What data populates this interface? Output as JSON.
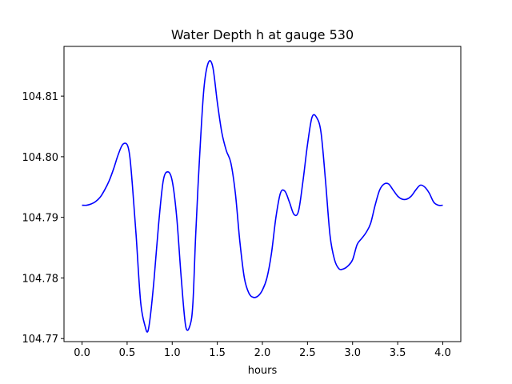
{
  "chart_data": {
    "type": "line",
    "title": "Water Depth h at gauge 530",
    "xlabel": "hours",
    "ylabel": "",
    "xlim": [
      -0.2,
      4.2
    ],
    "ylim": [
      104.7695,
      104.8182
    ],
    "x_ticks": [
      0.0,
      0.5,
      1.0,
      1.5,
      2.0,
      2.5,
      3.0,
      3.5,
      4.0
    ],
    "x_tick_labels": [
      "0.0",
      "0.5",
      "1.0",
      "1.5",
      "2.0",
      "2.5",
      "3.0",
      "3.5",
      "4.0"
    ],
    "y_ticks": [
      104.77,
      104.78,
      104.79,
      104.8,
      104.81
    ],
    "y_tick_labels": [
      "104.77",
      "104.78",
      "104.79",
      "104.80",
      "104.81"
    ],
    "grid": false,
    "series": [
      {
        "color": "#0000ff",
        "x": [
          0.0,
          0.05,
          0.1,
          0.15,
          0.2,
          0.25,
          0.3,
          0.35,
          0.4,
          0.45,
          0.5,
          0.53,
          0.56,
          0.6,
          0.65,
          0.7,
          0.73,
          0.76,
          0.8,
          0.85,
          0.9,
          0.95,
          1.0,
          1.05,
          1.1,
          1.15,
          1.2,
          1.23,
          1.26,
          1.3,
          1.35,
          1.4,
          1.45,
          1.5,
          1.55,
          1.6,
          1.65,
          1.7,
          1.75,
          1.8,
          1.85,
          1.9,
          1.95,
          2.0,
          2.05,
          2.1,
          2.15,
          2.2,
          2.25,
          2.3,
          2.35,
          2.4,
          2.45,
          2.5,
          2.55,
          2.6,
          2.65,
          2.7,
          2.75,
          2.8,
          2.85,
          2.9,
          2.95,
          3.0,
          3.05,
          3.1,
          3.15,
          3.2,
          3.25,
          3.3,
          3.35,
          3.4,
          3.45,
          3.5,
          3.55,
          3.6,
          3.65,
          3.7,
          3.75,
          3.8,
          3.85,
          3.9,
          3.95,
          4.0
        ],
        "values": [
          104.792,
          104.792,
          104.7922,
          104.7926,
          104.7933,
          104.7945,
          104.796,
          104.798,
          104.8003,
          104.802,
          104.802,
          104.8,
          104.795,
          104.787,
          104.776,
          104.772,
          104.7712,
          104.774,
          104.78,
          104.789,
          104.796,
          104.7975,
          104.796,
          104.79,
          104.78,
          104.772,
          104.7723,
          104.776,
          104.787,
          104.799,
          104.811,
          104.8155,
          104.8148,
          104.809,
          104.804,
          104.801,
          104.799,
          104.794,
          104.786,
          104.78,
          104.7775,
          104.7768,
          104.777,
          104.778,
          104.78,
          104.784,
          104.79,
          104.794,
          104.7943,
          104.7925,
          104.7905,
          104.791,
          104.796,
          104.802,
          104.8065,
          104.8065,
          104.804,
          104.796,
          104.787,
          104.783,
          104.7815,
          104.7815,
          104.782,
          104.783,
          104.7855,
          104.7865,
          104.7875,
          104.789,
          104.792,
          104.7945,
          104.7955,
          104.7955,
          104.7945,
          104.7935,
          104.793,
          104.793,
          104.7935,
          104.7945,
          104.7953,
          104.795,
          104.794,
          104.7925,
          104.792,
          104.792
        ]
      }
    ]
  }
}
